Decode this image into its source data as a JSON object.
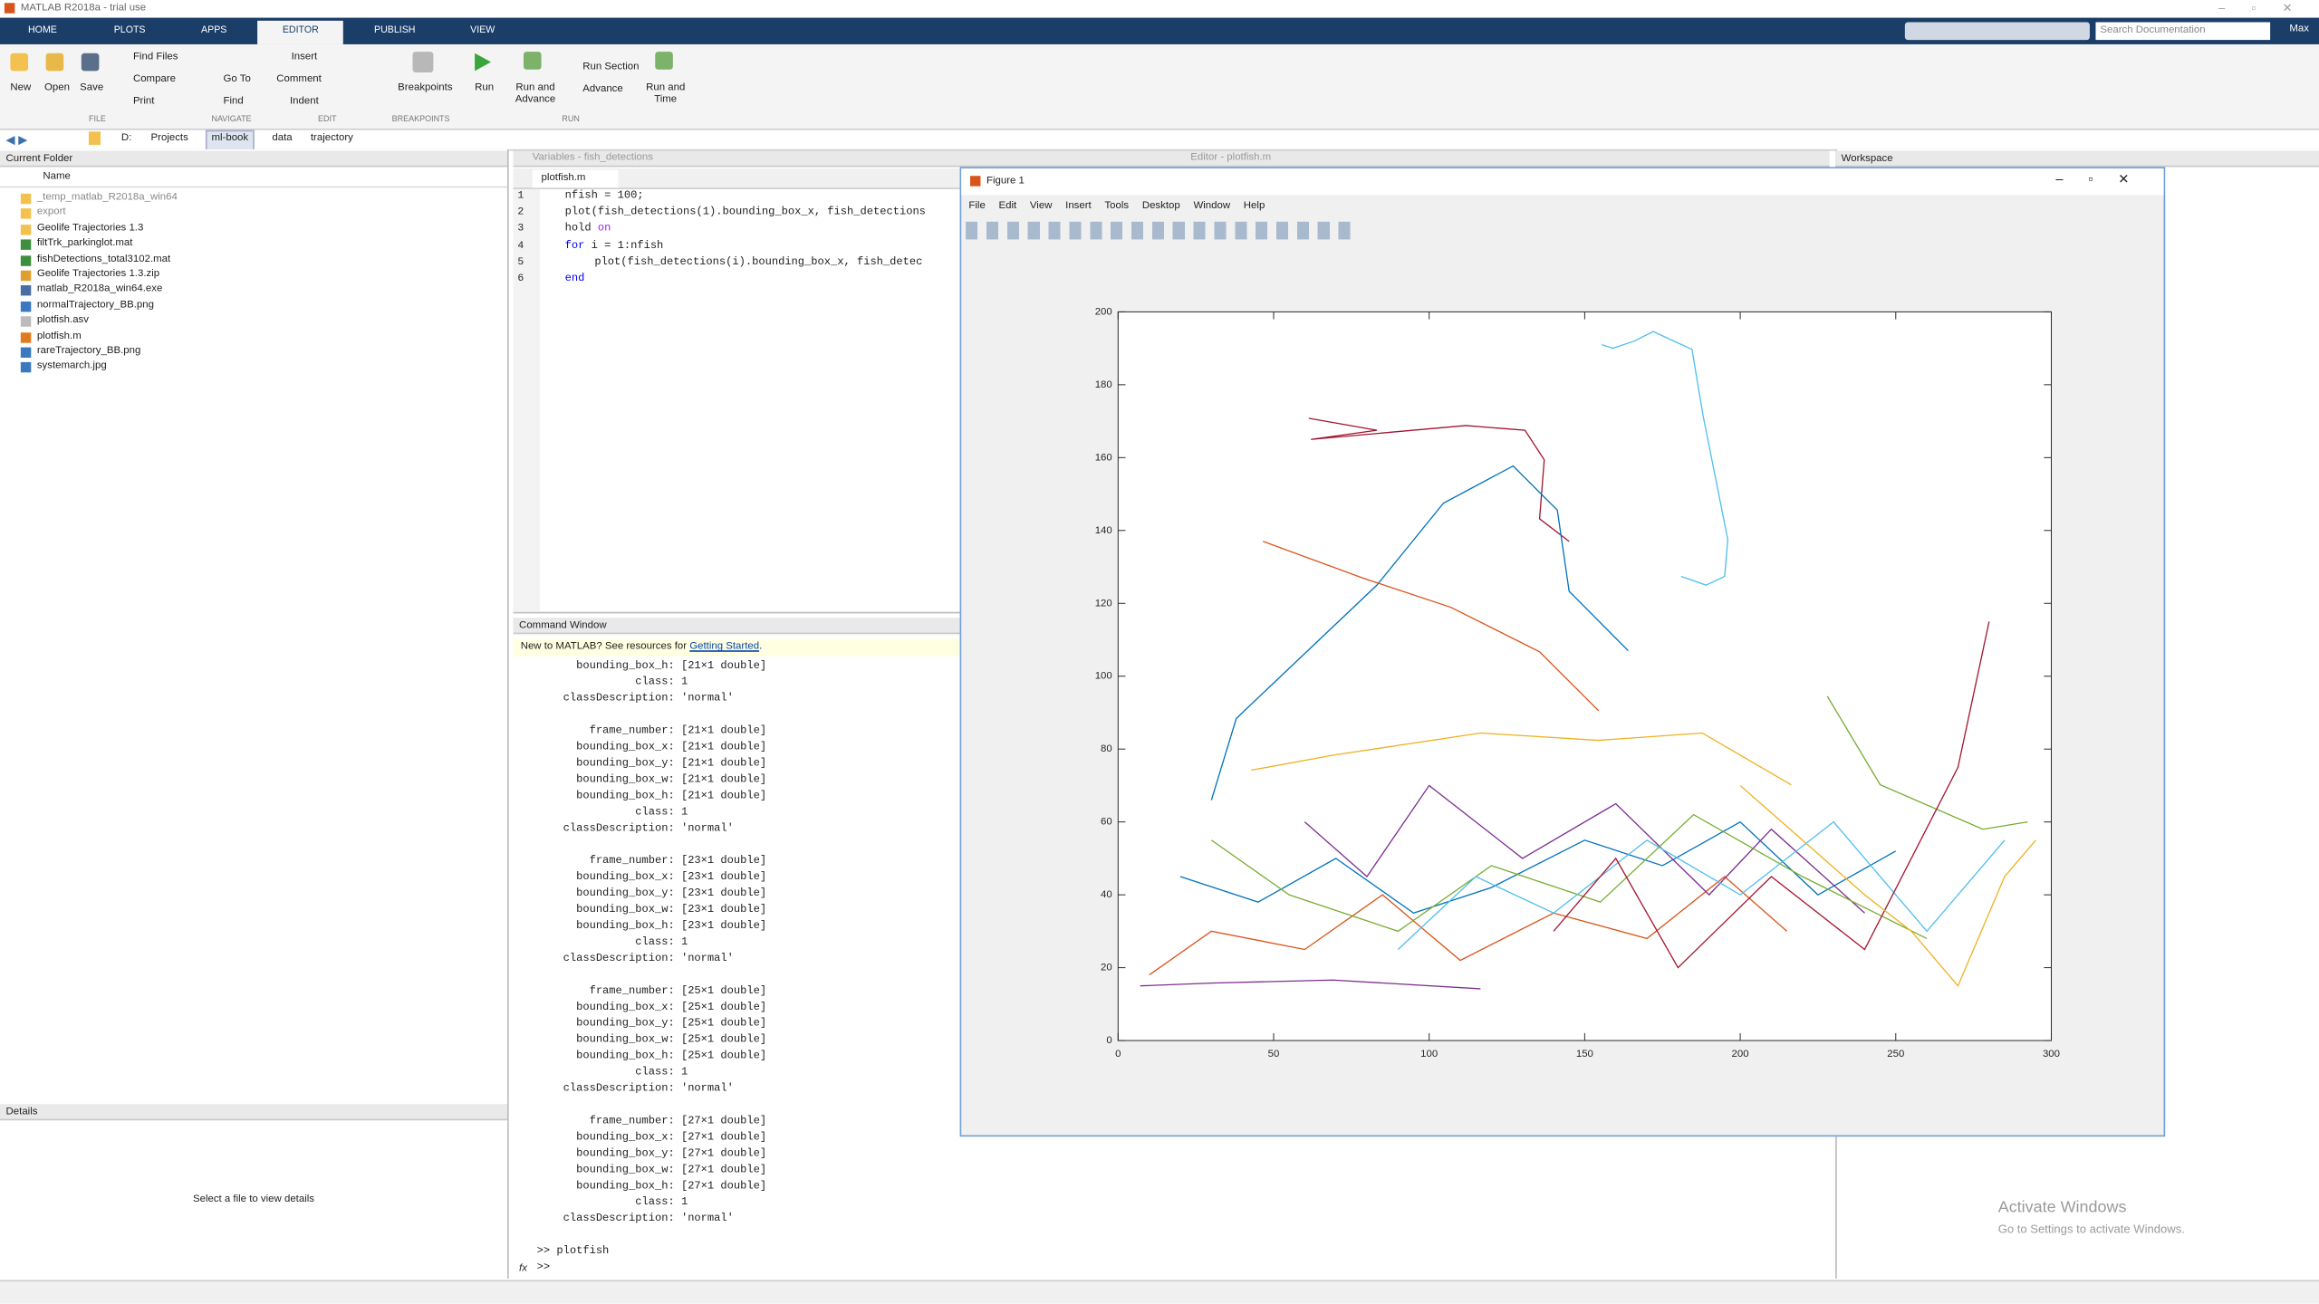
{
  "window_title": "MATLAB R2018a - trial use",
  "tabs": [
    "HOME",
    "PLOTS",
    "APPS",
    "EDITOR",
    "PUBLISH",
    "VIEW"
  ],
  "search_placeholder": "Search Documentation",
  "user": "Max",
  "ribbon": {
    "buttons": [
      "New",
      "Open",
      "Save",
      "Find Files",
      "Compare",
      "Print",
      "Go To",
      "Find",
      "Insert",
      "Comment",
      "Indent",
      "Breakpoints",
      "Run",
      "Run and Advance",
      "Run Section",
      "Advance",
      "Run and Time"
    ],
    "groups": [
      "FILE",
      "NAVIGATE",
      "EDIT",
      "BREAKPOINTS",
      "RUN"
    ]
  },
  "path": [
    "D:",
    "Projects",
    "ml-book",
    "data",
    "trajectory"
  ],
  "current_folder": {
    "title": "Current Folder",
    "column": "Name",
    "files": [
      "_temp_matlab_R2018a_win64",
      "export",
      "Geolife Trajectories 1.3",
      "filtTrk_parkinglot.mat",
      "fishDetections_total3102.mat",
      "Geolife Trajectories 1.3.zip",
      "matlab_R2018a_win64.exe",
      "normalTrajectory_BB.png",
      "plotfish.asv",
      "plotfish.m",
      "rareTrajectory_BB.png",
      "systemarch.jpg"
    ]
  },
  "details": {
    "title": "Details",
    "message": "Select a file to view details"
  },
  "variables_title": "Variables - fish_detections",
  "editor": {
    "title": "Editor - plotfish.m",
    "tab": "plotfish.m",
    "lines": [
      {
        "number": 1,
        "code": [
          "nfish = 100;"
        ]
      },
      {
        "number": 2,
        "code": [
          "plot(fish_detections(1).bounding_box_x, fish_detections"
        ]
      },
      {
        "number": 3,
        "code": [
          "hold ",
          "on"
        ]
      },
      {
        "number": 4,
        "code": [
          "for",
          " i = 1:nfish"
        ]
      },
      {
        "number": 5,
        "code": [
          "plot(fish_detections(i).bounding_box_x, fish_detec"
        ]
      },
      {
        "number": 6,
        "code": [
          "end"
        ]
      }
    ]
  },
  "command_window": {
    "title": "Command Window",
    "notice": [
      "New to MATLAB? See resources for ",
      "Getting Started",
      "."
    ],
    "output": [
      [
        "      bounding_box_h: [21×1 double]",
        "               class: 1",
        "    classDescription: 'normal'"
      ],
      [
        "        frame_number: [21×1 double]",
        "      bounding_box_x: [21×1 double]",
        "      bounding_box_y: [21×1 double]",
        "      bounding_box_w: [21×1 double]",
        "      bounding_box_h: [21×1 double]",
        "               class: 1",
        "    classDescription: 'normal'"
      ],
      [
        "        frame_number: [23×1 double]",
        "      bounding_box_x: [23×1 double]",
        "      bounding_box_y: [23×1 double]",
        "      bounding_box_w: [23×1 double]",
        "      bounding_box_h: [23×1 double]",
        "               class: 1",
        "    classDescription: 'normal'"
      ],
      [
        "        frame_number: [25×1 double]",
        "      bounding_box_x: [25×1 double]",
        "      bounding_box_y: [25×1 double]",
        "      bounding_box_w: [25×1 double]",
        "      bounding_box_h: [25×1 double]",
        "               class: 1",
        "    classDescription: 'normal'"
      ],
      [
        "        frame_number: [27×1 double]",
        "      bounding_box_x: [27×1 double]",
        "      bounding_box_y: [27×1 double]",
        "      bounding_box_w: [27×1 double]",
        "      bounding_box_h: [27×1 double]",
        "               class: 1",
        "    classDescription: 'normal'"
      ]
    ],
    "history": ">> plotfish",
    "prompt": ">>",
    "fx": "fx"
  },
  "workspace_title": "Workspace",
  "figure": {
    "title": "Figure 1",
    "menus": [
      "File",
      "Edit",
      "View",
      "Insert",
      "Tools",
      "Desktop",
      "Window",
      "Help"
    ]
  },
  "watermark": [
    "Activate Windows",
    "Go to Settings to activate Windows."
  ],
  "chart_data": {
    "type": "line",
    "xlim": [
      0,
      300
    ],
    "ylim": [
      0,
      200
    ],
    "xticks": [
      0,
      50,
      100,
      150,
      200,
      250,
      300
    ],
    "yticks": [
      0,
      20,
      40,
      60,
      80,
      100,
      120,
      140,
      160,
      180,
      200
    ],
    "series": [
      {
        "color": "#4dbeee",
        "x": [
          155.5,
          159,
          166,
          172,
          184.5,
          188,
          196,
          195,
          189,
          181
        ],
        "values": [
          191,
          190,
          192,
          194.6,
          189.7,
          171.8,
          137.5,
          127.4,
          125,
          127.4
        ]
      },
      {
        "color": "#a2142f",
        "x": [
          61.3,
          83.2,
          62,
          111.7,
          130.8,
          137,
          135.5,
          145
        ],
        "values": [
          170.8,
          167.5,
          165,
          168.8,
          167.5,
          159.4,
          143.2,
          137
        ]
      },
      {
        "color": "#0072bd",
        "x": [
          30,
          38,
          83.2,
          104.6,
          127,
          141.2,
          145,
          164
        ],
        "values": [
          66,
          88.4,
          125,
          147.5,
          157.7,
          145.6,
          123.3,
          107
        ]
      },
      {
        "color": "#d95319",
        "x": [
          46.6,
          78.5,
          107,
          135.5,
          154.5
        ],
        "values": [
          137,
          127,
          118.9,
          106.7,
          90.5
        ]
      },
      {
        "color": "#7e2f8e",
        "x": [
          7.1,
          31,
          69,
          116.5
        ],
        "values": [
          15,
          15.8,
          16.6,
          14.2
        ]
      },
      {
        "color": "#77ac30",
        "x": [
          228,
          245,
          278,
          292.4
        ],
        "values": [
          94.5,
          70.2,
          58,
          60
        ]
      },
      {
        "color": "#edb120",
        "x": [
          42.8,
          69,
          116.5,
          154.5,
          187.8,
          216.4
        ],
        "values": [
          74.2,
          78.3,
          84.4,
          82.4,
          84.4,
          70.2
        ]
      },
      {
        "color": "#0072bd",
        "x": [
          20,
          45,
          70,
          95,
          120,
          150,
          175,
          200,
          225,
          250
        ],
        "values": [
          45,
          38,
          50,
          35,
          42,
          55,
          48,
          60,
          40,
          52
        ]
      },
      {
        "color": "#d95319",
        "x": [
          10,
          30,
          60,
          85,
          110,
          140,
          170,
          195,
          215
        ],
        "values": [
          18,
          30,
          25,
          40,
          22,
          35,
          28,
          45,
          30
        ]
      },
      {
        "color": "#7e2f8e",
        "x": [
          60,
          80,
          100,
          130,
          160,
          190,
          210,
          240
        ],
        "values": [
          60,
          45,
          70,
          50,
          65,
          40,
          58,
          35
        ]
      },
      {
        "color": "#77ac30",
        "x": [
          30,
          55,
          90,
          120,
          155,
          185,
          220,
          260
        ],
        "values": [
          55,
          40,
          30,
          48,
          38,
          62,
          45,
          28
        ]
      },
      {
        "color": "#4dbeee",
        "x": [
          90,
          115,
          140,
          170,
          200,
          230,
          260,
          285
        ],
        "values": [
          25,
          45,
          35,
          55,
          40,
          60,
          30,
          55
        ]
      },
      {
        "color": "#a2142f",
        "x": [
          140,
          160,
          180,
          210,
          240,
          270,
          280
        ],
        "values": [
          30,
          50,
          20,
          45,
          25,
          75,
          115
        ]
      },
      {
        "color": "#edb120",
        "x": [
          200,
          220,
          240,
          255,
          270,
          285,
          295
        ],
        "values": [
          70,
          55,
          40,
          30,
          15,
          45,
          55
        ]
      }
    ]
  }
}
